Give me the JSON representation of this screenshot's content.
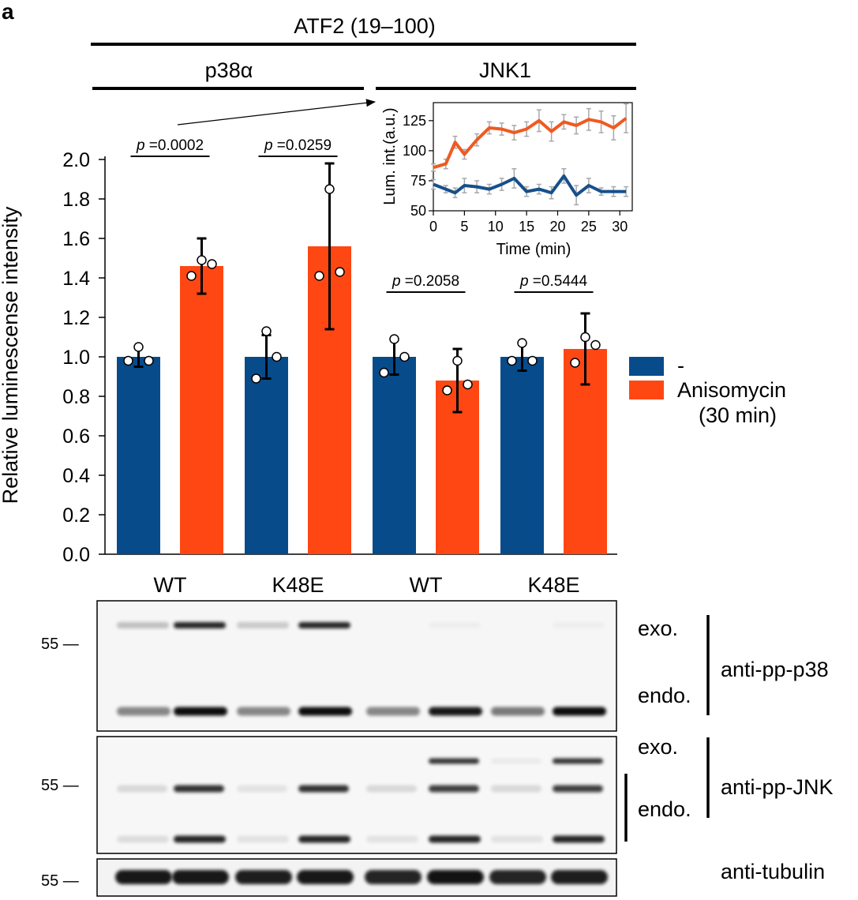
{
  "panel_label": "a",
  "header": {
    "substrate": "ATF2 (19–100)",
    "kinase_left": "p38α",
    "kinase_right": "JNK1"
  },
  "chart_data": [
    {
      "type": "bar",
      "ylabel": "Relative luminescense intensity",
      "ylim": [
        0,
        2.0
      ],
      "yticks": [
        "0.0",
        "0.2",
        "0.4",
        "0.6",
        "0.8",
        "1.0",
        "1.2",
        "1.4",
        "1.6",
        "1.8",
        "2.0"
      ],
      "categories": [
        "WT",
        "K48E",
        "WT",
        "K48E"
      ],
      "series": [
        {
          "name": "-",
          "color": "#084B8A",
          "values": [
            1.0,
            1.0,
            1.0,
            1.0
          ],
          "errors": [
            0.05,
            0.11,
            0.09,
            0.07
          ],
          "points": [
            [
              0.98,
              0.98,
              1.05
            ],
            [
              0.89,
              1.0,
              1.13
            ],
            [
              0.92,
              1.0,
              1.09
            ],
            [
              0.98,
              0.98,
              1.07
            ]
          ]
        },
        {
          "name": "Anisomycin (30 min)",
          "color": "#FF4713",
          "values": [
            1.46,
            1.56,
            0.88,
            1.04
          ],
          "errors": [
            0.14,
            0.42,
            0.16,
            0.18
          ],
          "points": [
            [
              1.41,
              1.47,
              1.49
            ],
            [
              1.41,
              1.43,
              1.85
            ],
            [
              0.83,
              0.86,
              0.98
            ],
            [
              0.97,
              1.06,
              1.1
            ]
          ]
        }
      ],
      "significance": [
        {
          "p_prefix": "p",
          "p_text": " =0.0002"
        },
        {
          "p_prefix": "p",
          "p_text": " =0.0259"
        },
        {
          "p_prefix": "p",
          "p_text": " =0.2058"
        },
        {
          "p_prefix": "p",
          "p_text": " =0.5444"
        }
      ],
      "legend": [
        {
          "label": "-"
        },
        {
          "label": "Anisomycin"
        },
        {
          "label": "(30 min)"
        }
      ]
    },
    {
      "type": "line",
      "xlabel": "Time (min)",
      "ylabel": "Lum. int.(a.u.)",
      "xlim": [
        0,
        32
      ],
      "ylim": [
        50,
        140
      ],
      "xticks": [
        "0",
        "5",
        "10",
        "15",
        "20",
        "25",
        "30"
      ],
      "yticks": [
        "50",
        "75",
        "100",
        "125"
      ],
      "x": [
        0,
        2,
        3.5,
        5,
        7,
        9,
        11,
        13,
        15,
        17,
        19,
        21,
        23,
        25,
        27,
        29,
        31
      ],
      "series": [
        {
          "color": "#EF5A21",
          "values": [
            86,
            89,
            107,
            97,
            109,
            119,
            118,
            115,
            118,
            125,
            116,
            124,
            121,
            126,
            124,
            119,
            127
          ],
          "errors": [
            3,
            4,
            5,
            4,
            5,
            5,
            5,
            6,
            6,
            9,
            8,
            6,
            7,
            9,
            9,
            10,
            12
          ]
        },
        {
          "color": "#16508A",
          "values": [
            72,
            68,
            65,
            71,
            70,
            68,
            72,
            77,
            66,
            68,
            65,
            79,
            63,
            71,
            66,
            66,
            66
          ],
          "errors": [
            4,
            3,
            4,
            6,
            5,
            4,
            5,
            8,
            4,
            4,
            5,
            6,
            8,
            6,
            3,
            4,
            4
          ]
        }
      ]
    }
  ],
  "blots": {
    "mw_marker": "55 —",
    "pp_p38": {
      "label": "anti-pp-p38",
      "exo": "exo.",
      "endo": "endo."
    },
    "pp_jnk": {
      "label": "anti-pp-JNK",
      "exo": "exo.",
      "endo": "endo."
    },
    "tubulin": {
      "label": "anti-tubulin"
    }
  }
}
